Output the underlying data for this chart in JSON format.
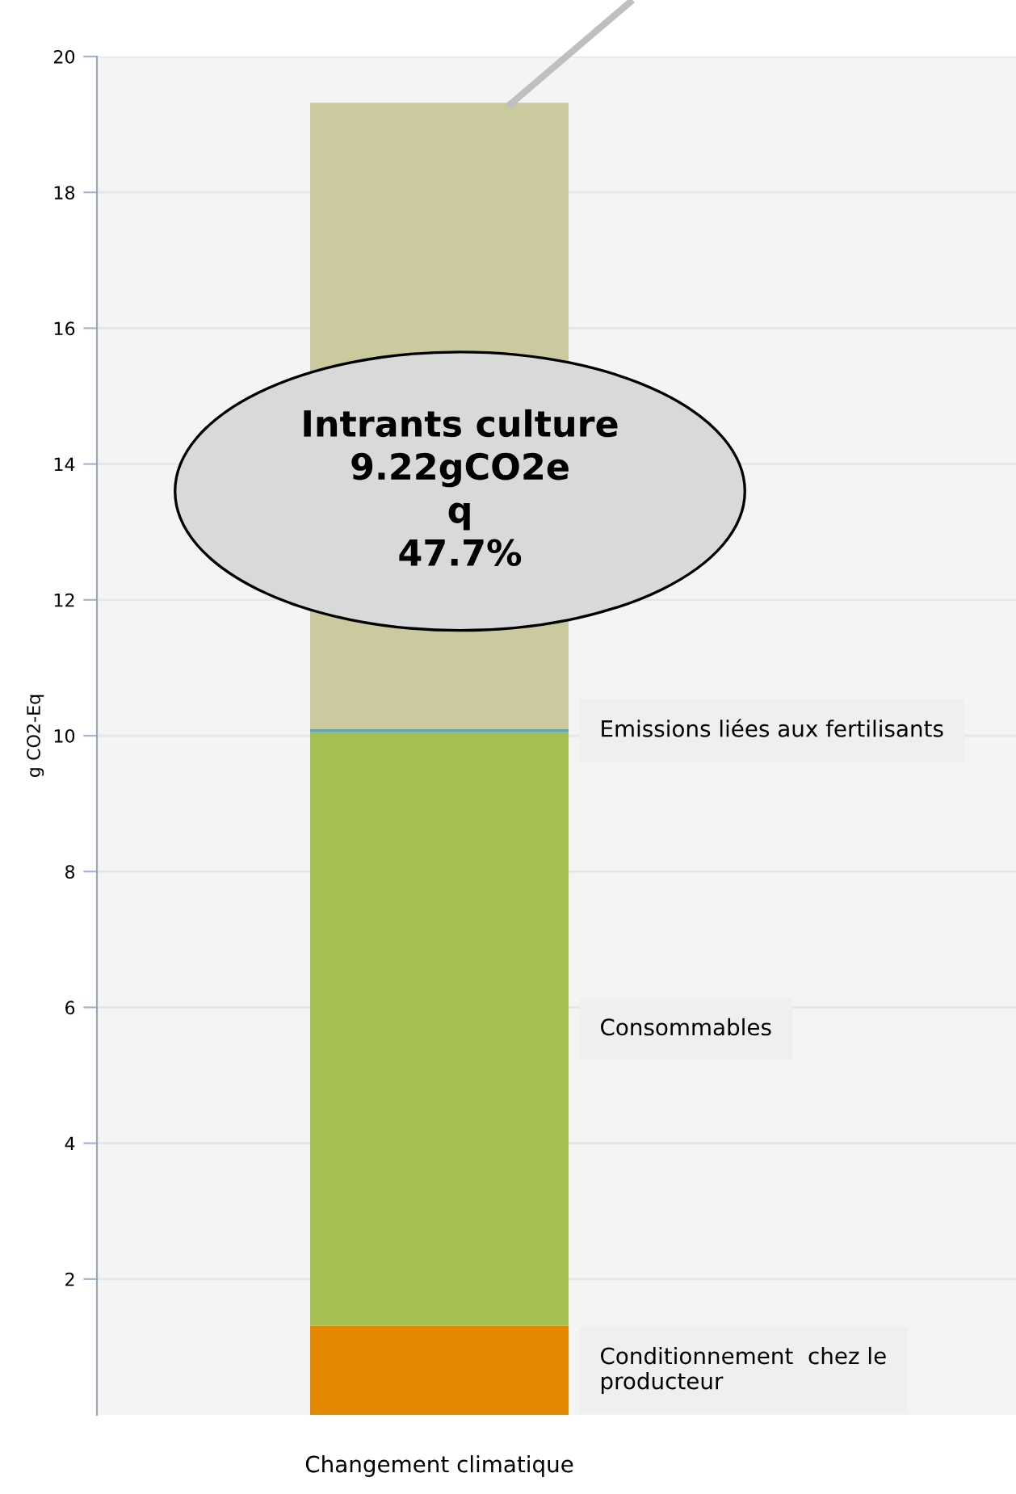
{
  "chart_data": {
    "type": "bar",
    "stacked": true,
    "ylabel": "g CO2-Eq",
    "categories": [
      "Changement climatique"
    ],
    "series": [
      {
        "name": "Conditionnement  chez le producteur",
        "color": "#e38800",
        "values": [
          1.31
        ]
      },
      {
        "name": "Consommables",
        "color": "#a5bf50",
        "values": [
          8.74
        ]
      },
      {
        "name": "Emissions liées aux fertilisants",
        "color": "#5aaab0",
        "values": [
          0.05
        ]
      },
      {
        "color": "#cbca9e",
        "values": [
          9.22
        ]
      }
    ],
    "annotations": [
      "Intrants culture\n9.22gCO2e\nq\n47.7%"
    ],
    "ylim": [
      0,
      20
    ],
    "yticks": [
      2,
      4,
      6,
      8,
      10,
      12,
      14,
      16,
      18,
      20
    ],
    "grid": "y",
    "legend": false
  }
}
